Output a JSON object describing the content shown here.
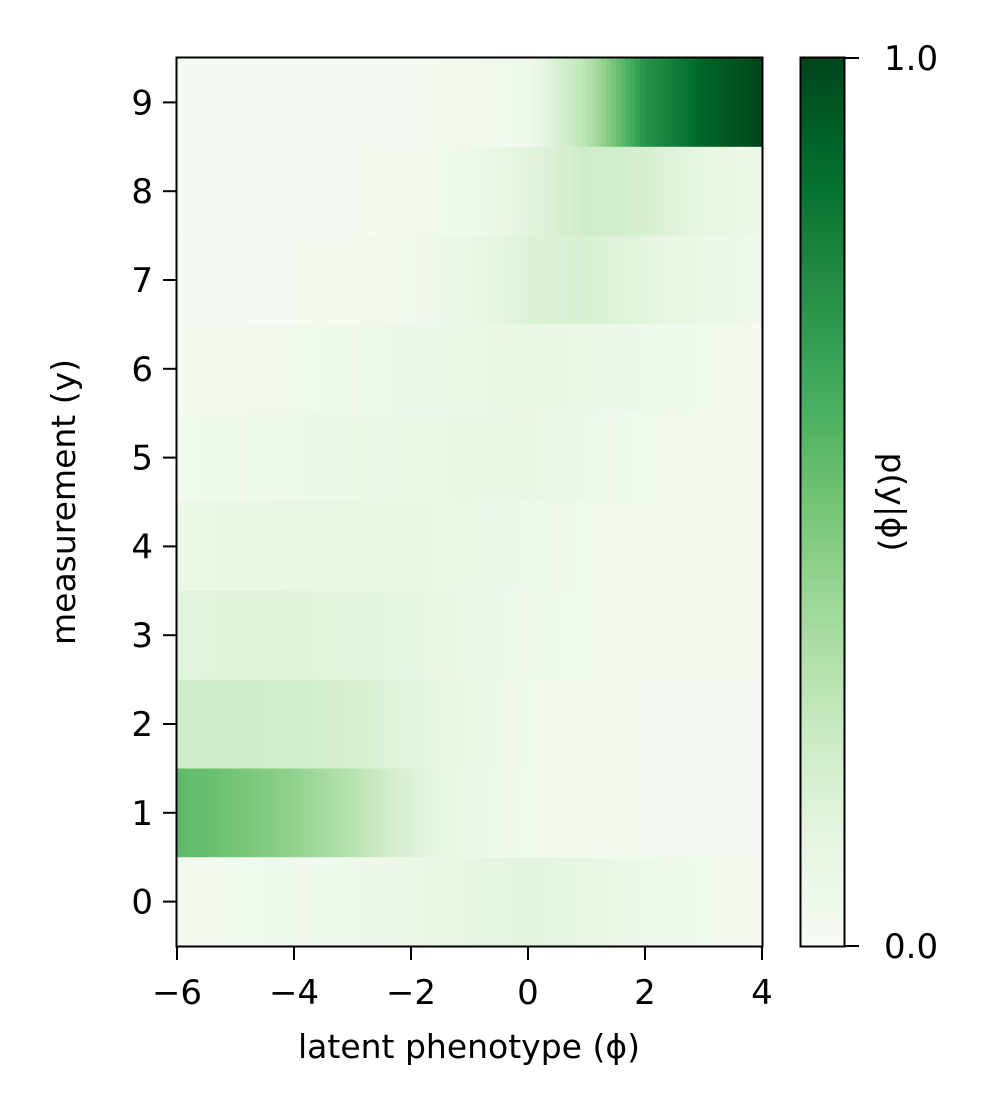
{
  "chart_data": {
    "type": "heatmap",
    "xlabel": "latent phenotype (ϕ)",
    "ylabel": "measurement (y)",
    "colorbar_label": "p(y|ϕ)",
    "colormap": "Greens",
    "xlim": [
      -6,
      4
    ],
    "ylim": [
      -0.5,
      9.5
    ],
    "x_ticks": [
      -6,
      -4,
      -2,
      0,
      2,
      4
    ],
    "x_tick_labels": [
      "−6",
      "−4",
      "−2",
      "0",
      "2",
      "4"
    ],
    "y_ticks": [
      0,
      1,
      2,
      3,
      4,
      5,
      6,
      7,
      8,
      9
    ],
    "y_tick_labels": [
      "0",
      "1",
      "2",
      "3",
      "4",
      "5",
      "6",
      "7",
      "8",
      "9"
    ],
    "colorbar_range": [
      0.0,
      1.0
    ],
    "colorbar_tick_labels": [
      "0.0",
      "1.0"
    ],
    "x": [
      -6,
      -5,
      -4,
      -3,
      -2,
      -1,
      0,
      1,
      2,
      3,
      4
    ],
    "rows": [
      {
        "y": 0,
        "values": [
          0.03,
          0.04,
          0.05,
          0.06,
          0.08,
          0.11,
          0.14,
          0.1,
          0.06,
          0.04,
          0.03
        ]
      },
      {
        "y": 1,
        "values": [
          0.55,
          0.5,
          0.42,
          0.3,
          0.16,
          0.07,
          0.04,
          0.03,
          0.02,
          0.02,
          0.02
        ]
      },
      {
        "y": 2,
        "values": [
          0.22,
          0.22,
          0.21,
          0.19,
          0.14,
          0.08,
          0.04,
          0.03,
          0.02,
          0.02,
          0.02
        ]
      },
      {
        "y": 3,
        "values": [
          0.14,
          0.15,
          0.15,
          0.14,
          0.12,
          0.08,
          0.05,
          0.04,
          0.03,
          0.03,
          0.03
        ]
      },
      {
        "y": 4,
        "values": [
          0.08,
          0.09,
          0.1,
          0.1,
          0.09,
          0.08,
          0.06,
          0.04,
          0.03,
          0.03,
          0.03
        ]
      },
      {
        "y": 5,
        "values": [
          0.04,
          0.05,
          0.06,
          0.07,
          0.08,
          0.09,
          0.09,
          0.06,
          0.04,
          0.03,
          0.03
        ]
      },
      {
        "y": 6,
        "values": [
          0.02,
          0.03,
          0.04,
          0.05,
          0.07,
          0.08,
          0.1,
          0.08,
          0.06,
          0.04,
          0.03
        ]
      },
      {
        "y": 7,
        "values": [
          0.02,
          0.02,
          0.02,
          0.03,
          0.04,
          0.08,
          0.16,
          0.18,
          0.13,
          0.08,
          0.05
        ]
      },
      {
        "y": 8,
        "values": [
          0.02,
          0.02,
          0.02,
          0.02,
          0.03,
          0.05,
          0.14,
          0.22,
          0.19,
          0.11,
          0.07
        ]
      },
      {
        "y": 9,
        "values": [
          0.02,
          0.02,
          0.02,
          0.02,
          0.02,
          0.03,
          0.05,
          0.3,
          0.72,
          0.9,
          1.0
        ]
      }
    ]
  }
}
